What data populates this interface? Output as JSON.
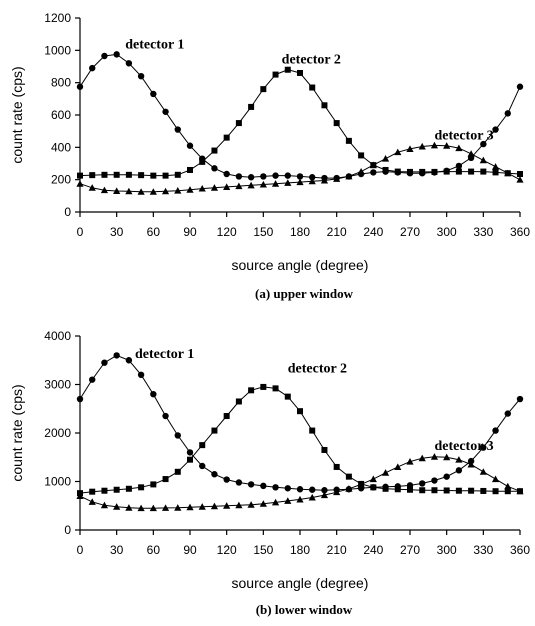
{
  "chart_data": [
    {
      "id": "a",
      "type": "line",
      "caption": "(a) upper window",
      "xlabel": "source angle (degree)",
      "ylabel": "count rate (cps)",
      "xlim": [
        0,
        360
      ],
      "ylim": [
        0,
        1200
      ],
      "xticks": [
        "0",
        "30",
        "60",
        "90",
        "120",
        "150",
        "180",
        "210",
        "240",
        "270",
        "300",
        "330",
        "360"
      ],
      "yticks": [
        "0",
        "200",
        "400",
        "600",
        "800",
        "1000",
        "1200"
      ],
      "grid": false,
      "annotations": [
        {
          "text": "detector 1",
          "x": 37,
          "y": 1010
        },
        {
          "text": "detector 2",
          "x": 165,
          "y": 920
        },
        {
          "text": "detector 3",
          "x": 290,
          "y": 450
        }
      ],
      "x": [
        0,
        10,
        20,
        30,
        40,
        50,
        60,
        70,
        80,
        90,
        100,
        110,
        120,
        130,
        140,
        150,
        160,
        170,
        180,
        190,
        200,
        210,
        220,
        230,
        240,
        250,
        260,
        270,
        280,
        290,
        300,
        310,
        320,
        330,
        340,
        350,
        360
      ],
      "series": [
        {
          "name": "detector 1",
          "marker": "circle",
          "values": [
            775,
            890,
            965,
            975,
            920,
            840,
            730,
            620,
            510,
            410,
            330,
            270,
            235,
            220,
            215,
            220,
            225,
            225,
            220,
            215,
            210,
            210,
            220,
            235,
            245,
            250,
            245,
            240,
            240,
            245,
            255,
            285,
            335,
            420,
            510,
            610,
            775
          ]
        },
        {
          "name": "detector 2",
          "marker": "square",
          "values": [
            225,
            228,
            230,
            230,
            230,
            228,
            225,
            225,
            230,
            260,
            310,
            380,
            460,
            550,
            650,
            760,
            850,
            880,
            860,
            770,
            660,
            550,
            440,
            350,
            290,
            260,
            250,
            248,
            248,
            248,
            250,
            250,
            250,
            250,
            245,
            240,
            235
          ]
        },
        {
          "name": "detector 3",
          "marker": "triangle",
          "values": [
            175,
            150,
            135,
            130,
            128,
            125,
            125,
            128,
            132,
            138,
            145,
            150,
            155,
            160,
            165,
            170,
            175,
            180,
            185,
            190,
            195,
            205,
            220,
            250,
            290,
            330,
            370,
            390,
            405,
            412,
            410,
            395,
            360,
            320,
            280,
            240,
            200
          ]
        }
      ]
    },
    {
      "id": "b",
      "type": "line",
      "caption": "(b) lower window",
      "xlabel": "source angle (degree)",
      "ylabel": "count rate (cps)",
      "xlim": [
        0,
        360
      ],
      "ylim": [
        0,
        4000
      ],
      "xticks": [
        "0",
        "30",
        "60",
        "90",
        "120",
        "150",
        "180",
        "210",
        "240",
        "270",
        "300",
        "330",
        "360"
      ],
      "yticks": [
        "0",
        "1000",
        "2000",
        "3000",
        "4000"
      ],
      "grid": false,
      "annotations": [
        {
          "text": "detector 1",
          "x": 45,
          "y": 3550
        },
        {
          "text": "detector 2",
          "x": 170,
          "y": 3250
        },
        {
          "text": "detector 3",
          "x": 290,
          "y": 1650
        }
      ],
      "x": [
        0,
        10,
        20,
        30,
        40,
        50,
        60,
        70,
        80,
        90,
        100,
        110,
        120,
        130,
        140,
        150,
        160,
        170,
        180,
        190,
        200,
        210,
        220,
        230,
        240,
        250,
        260,
        270,
        280,
        290,
        300,
        310,
        320,
        330,
        340,
        350,
        360
      ],
      "series": [
        {
          "name": "detector 1",
          "marker": "circle",
          "values": [
            2700,
            3100,
            3450,
            3600,
            3500,
            3200,
            2800,
            2350,
            1950,
            1600,
            1320,
            1150,
            1040,
            980,
            940,
            910,
            880,
            860,
            840,
            830,
            820,
            830,
            840,
            860,
            880,
            890,
            900,
            920,
            960,
            1020,
            1100,
            1230,
            1420,
            1700,
            2050,
            2400,
            2700
          ]
        },
        {
          "name": "detector 2",
          "marker": "square",
          "values": [
            760,
            790,
            810,
            830,
            850,
            880,
            940,
            1050,
            1200,
            1450,
            1750,
            2050,
            2350,
            2650,
            2880,
            2950,
            2920,
            2750,
            2450,
            2050,
            1650,
            1300,
            1100,
            950,
            880,
            850,
            840,
            830,
            820,
            820,
            815,
            810,
            810,
            805,
            800,
            800,
            800
          ]
        },
        {
          "name": "detector 3",
          "marker": "triangle",
          "values": [
            700,
            580,
            510,
            480,
            460,
            450,
            450,
            455,
            460,
            470,
            480,
            490,
            500,
            510,
            520,
            540,
            570,
            600,
            630,
            670,
            720,
            780,
            850,
            940,
            1050,
            1180,
            1300,
            1410,
            1480,
            1510,
            1500,
            1450,
            1350,
            1200,
            1050,
            900,
            800
          ]
        }
      ]
    }
  ]
}
